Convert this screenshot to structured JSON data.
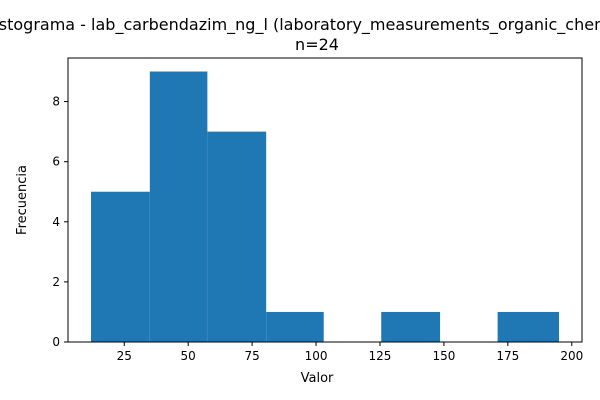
{
  "chart_data": {
    "type": "bar",
    "title": "Histograma - lab_carbendazim_ng_l (laboratory_measurements_organic_chemicals)",
    "subtitle": "n=24",
    "xlabel": "Valor",
    "ylabel": "Frecuencia",
    "xlim": [
      3,
      204
    ],
    "ylim": [
      0,
      9.45
    ],
    "x_ticks": [
      25,
      50,
      75,
      100,
      125,
      150,
      175,
      200
    ],
    "y_ticks": [
      0,
      2,
      4,
      6,
      8
    ],
    "bins": [
      {
        "start": 12,
        "end": 35,
        "count": 5
      },
      {
        "start": 35,
        "end": 57.5,
        "count": 9
      },
      {
        "start": 57.5,
        "end": 80.5,
        "count": 7
      },
      {
        "start": 80.5,
        "end": 103,
        "count": 1
      },
      {
        "start": 103,
        "end": 125.5,
        "count": 0
      },
      {
        "start": 125.5,
        "end": 148.5,
        "count": 1
      },
      {
        "start": 148.5,
        "end": 171,
        "count": 0
      },
      {
        "start": 171,
        "end": 195,
        "count": 1
      }
    ],
    "bar_color": "#1f77b4",
    "grid": false,
    "legend": "none"
  }
}
